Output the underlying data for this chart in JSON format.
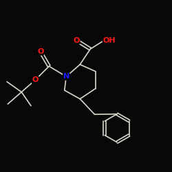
{
  "background_color": "#080808",
  "bond_color": "#d8d8cc",
  "bond_width": 1.2,
  "atom_colors": {
    "O": "#ff1a1a",
    "N": "#1a1aff",
    "C": "#d8d8cc"
  },
  "font_size_atom": 7.5,
  "fig_size": [
    2.5,
    2.5
  ],
  "dpi": 100,
  "xlim": [
    0,
    10
  ],
  "ylim": [
    0,
    10
  ]
}
